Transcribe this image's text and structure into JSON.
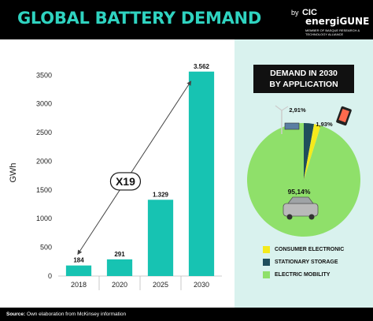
{
  "header": {
    "title": "GLOBAL BATTERY DEMAND",
    "brand_by": "by",
    "brand_name": "CIC",
    "brand_energ": "energiGUNE",
    "brand_tagline": "MEMBER OF BASQUE RESEARCH & TECHNOLOGY ALLIANCE"
  },
  "chart_data": [
    {
      "type": "bar",
      "ylabel": "GWh",
      "categories": [
        "2018",
        "2020",
        "2025",
        "2030"
      ],
      "values": [
        184,
        291,
        1329,
        3562
      ],
      "data_labels": [
        "184",
        "291",
        "1.329",
        "3.562"
      ],
      "yticks": [
        0,
        500,
        1000,
        1500,
        2000,
        2500,
        3000,
        3500
      ],
      "ylim": [
        0,
        3600
      ],
      "annotation": "X19",
      "bar_color": "#17c3b2"
    },
    {
      "type": "pie",
      "title": "DEMAND IN 2030 BY APPLICATION",
      "slices": [
        {
          "name": "CONSUMER ELECTRONIC",
          "value": 1.93,
          "label": "1,93%",
          "color": "#f4ea1c"
        },
        {
          "name": "STATIONARY STORAGE",
          "value": 2.91,
          "label": "2,91%",
          "color": "#1f4e5c"
        },
        {
          "name": "ELECTRIC MOBILITY",
          "value": 95.14,
          "label": "95,14%",
          "color": "#8fe06a"
        }
      ]
    }
  ],
  "footer": {
    "source_label": "Source:",
    "source_text": " Own elaboration from McKinsey information"
  },
  "colors": {
    "accent_teal": "#2fd3c0",
    "bar_teal": "#17c3b2",
    "panel_bg": "#d9f2ee",
    "black": "#000000"
  }
}
